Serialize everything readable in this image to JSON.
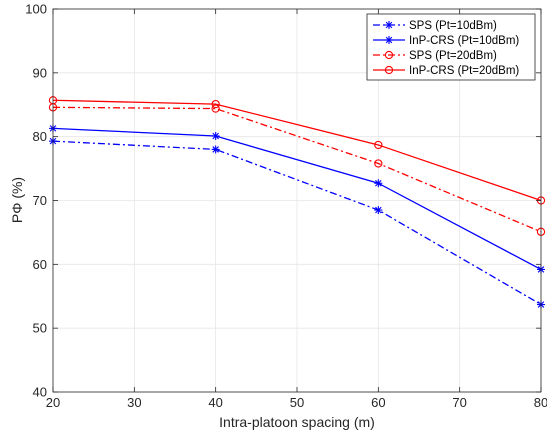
{
  "chart_data": {
    "type": "line",
    "xlabel": "Intra-platoon spacing (m)",
    "ylabel": "PΦ (%)",
    "xlim": [
      20,
      80
    ],
    "ylim": [
      40,
      100
    ],
    "xticks": [
      20,
      30,
      40,
      50,
      60,
      70,
      80
    ],
    "yticks": [
      40,
      50,
      60,
      70,
      80,
      90,
      100
    ],
    "grid": true,
    "legend_position": "top-right",
    "x": [
      20,
      40,
      60,
      80
    ],
    "series": [
      {
        "name": "SPS (Pt=10dBm)",
        "values": [
          79.3,
          78.0,
          68.5,
          53.7
        ],
        "color": "#0000ff",
        "line_style": "dashdot",
        "marker": "asterisk"
      },
      {
        "name": "InP-CRS (Pt=10dBm)",
        "values": [
          81.3,
          80.1,
          72.7,
          59.2
        ],
        "color": "#0000ff",
        "line_style": "solid",
        "marker": "asterisk"
      },
      {
        "name": "SPS (Pt=20dBm)",
        "values": [
          84.6,
          84.4,
          75.8,
          65.1
        ],
        "color": "#ff0000",
        "line_style": "dashdot",
        "marker": "circle"
      },
      {
        "name": "InP-CRS (Pt=20dBm)",
        "values": [
          85.7,
          85.1,
          78.7,
          70.0
        ],
        "color": "#ff0000",
        "line_style": "solid",
        "marker": "circle"
      }
    ]
  }
}
